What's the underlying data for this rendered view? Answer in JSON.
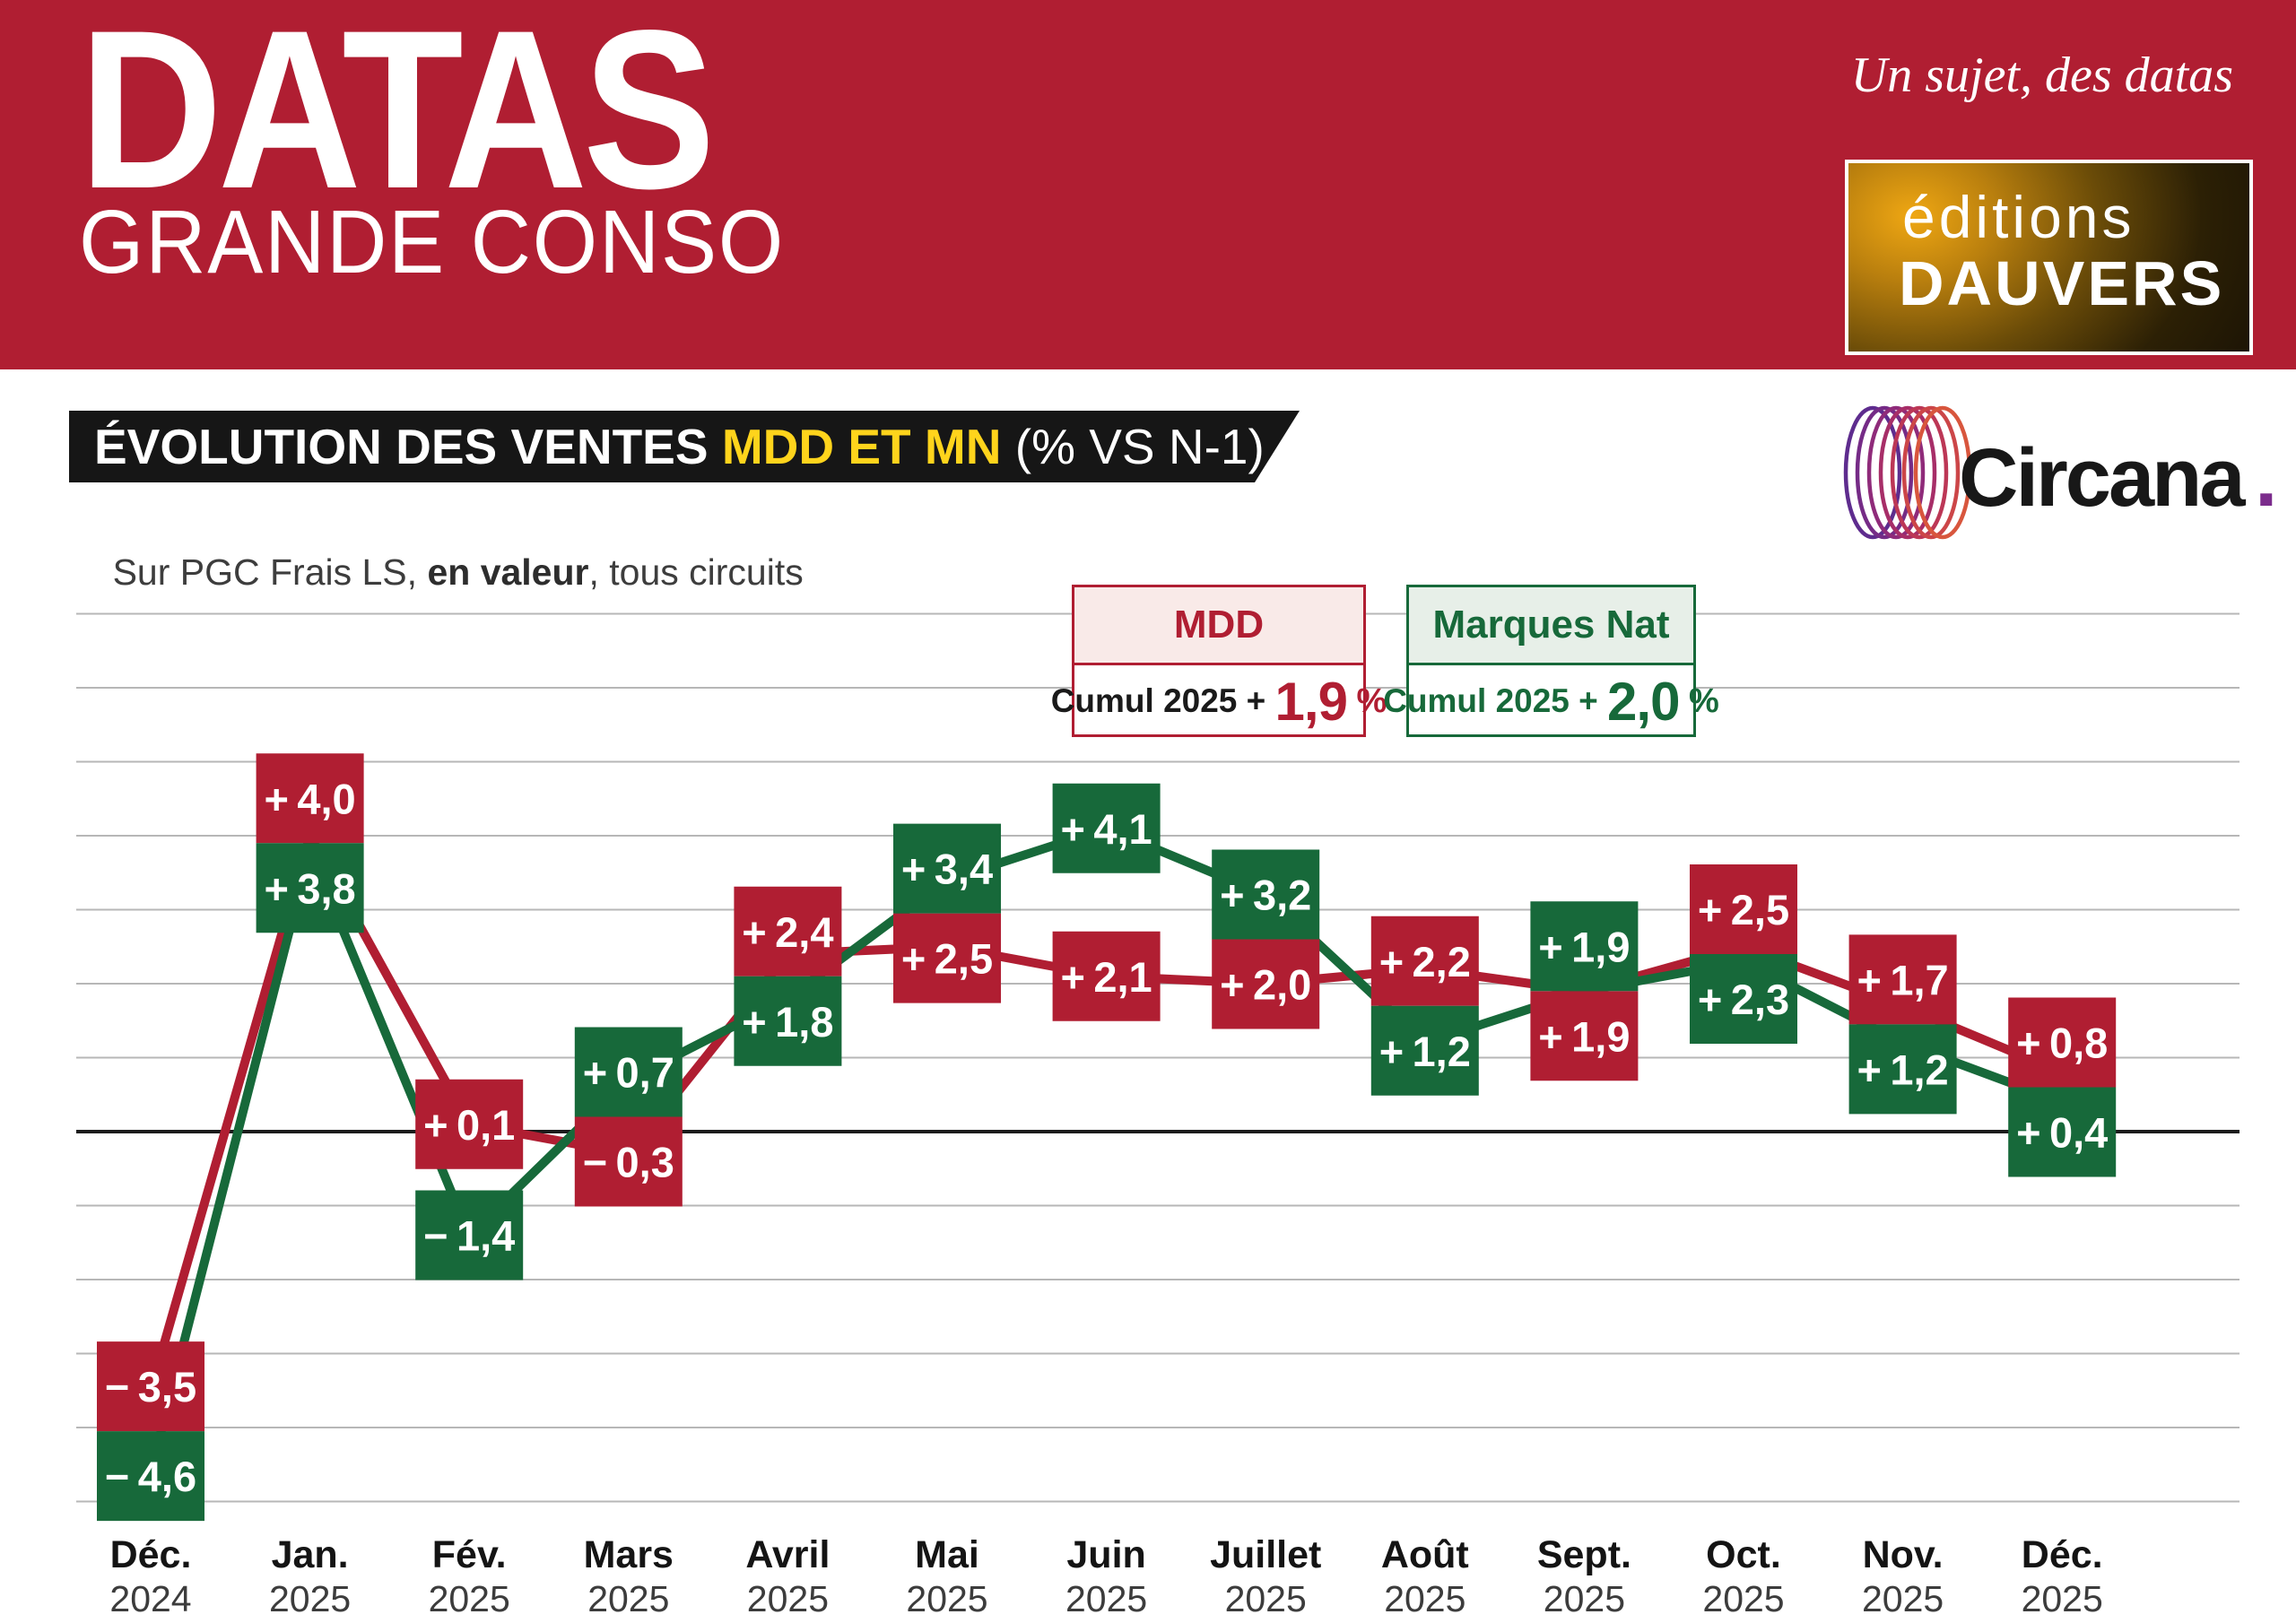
{
  "masthead": {
    "brand": "DATAS",
    "brand_sub": "GRANDE CONSO",
    "tagline": "Un sujet, des datas",
    "publisher_line1": "éditions",
    "publisher_line2": "DAUVERS",
    "bg_color": "#B01E32"
  },
  "title_banner": {
    "main": "ÉVOLUTION DES VENTES ",
    "highlight": "MDD ET MN",
    "suffix": " (% VS N-1)",
    "highlight_color": "#FFD41C"
  },
  "subtitle": {
    "prefix": "Sur PGC Frais LS, ",
    "bold": "en valeur",
    "suffix": ", tous circuits"
  },
  "source_logo": {
    "wordmark": "Circana",
    "dot": ".",
    "dot_color": "#7B2C8C"
  },
  "legend": {
    "mdd": {
      "title": "MDD",
      "cumul_prefix": "Cumul 2025 + ",
      "cumul_value": "1,9",
      "unit": " %",
      "color": "#B01E32",
      "fill": "#F9EAE8"
    },
    "mn": {
      "title": "Marques Nat",
      "cumul_prefix": "Cumul 2025 + ",
      "cumul_value": "2,0",
      "unit": " %",
      "color": "#17693A",
      "fill": "#E7EFE8"
    }
  },
  "chart_data": {
    "type": "line",
    "title": "ÉVOLUTION DES VENTES MDD ET MN (% VS N-1)",
    "subtitle": "Sur PGC Frais LS, en valeur, tous circuits",
    "categories": [
      "Déc.",
      "Jan.",
      "Fév.",
      "Mars",
      "Avril",
      "Mai",
      "Juin",
      "Juillet",
      "Août",
      "Sept.",
      "Oct.",
      "Nov.",
      "Déc."
    ],
    "years": [
      "2024",
      "2025",
      "2025",
      "2025",
      "2025",
      "2025",
      "2025",
      "2025",
      "2025",
      "2025",
      "2025",
      "2025",
      "2025"
    ],
    "ylim": [
      -5,
      7
    ],
    "grid": true,
    "zero_line": true,
    "unit": "% vs N-1",
    "series": [
      {
        "name": "MDD",
        "color": "#B01E32",
        "values": [
          -3.5,
          4.0,
          0.1,
          -0.3,
          2.4,
          2.5,
          2.1,
          2.0,
          2.2,
          1.9,
          2.5,
          1.7,
          0.8
        ],
        "labels": [
          "− 3,5",
          "+ 4,0",
          "+ 0,1",
          "− 0,3",
          "+ 2,4",
          "+ 2,5",
          "+ 2,1",
          "+ 2,0",
          "+ 2,2",
          "+ 1,9",
          "+ 2,5",
          "+ 1,7",
          "+ 0,8"
        ],
        "cumul_2025": "+ 1,9 %"
      },
      {
        "name": "Marques Nat",
        "color": "#17693A",
        "values": [
          -4.6,
          3.8,
          -1.4,
          0.7,
          1.8,
          3.4,
          4.1,
          3.2,
          1.2,
          1.9,
          2.3,
          1.2,
          0.4
        ],
        "labels": [
          "− 4,6",
          "+ 3,8",
          "− 1,4",
          "+ 0,7",
          "+ 1,8",
          "+ 3,4",
          "+ 4,1",
          "+ 3,2",
          "+ 1,2",
          "+ 1,9",
          "+ 2,3",
          "+ 1,2",
          "+ 0,4"
        ],
        "cumul_2025": "+ 2,0 %"
      }
    ]
  }
}
